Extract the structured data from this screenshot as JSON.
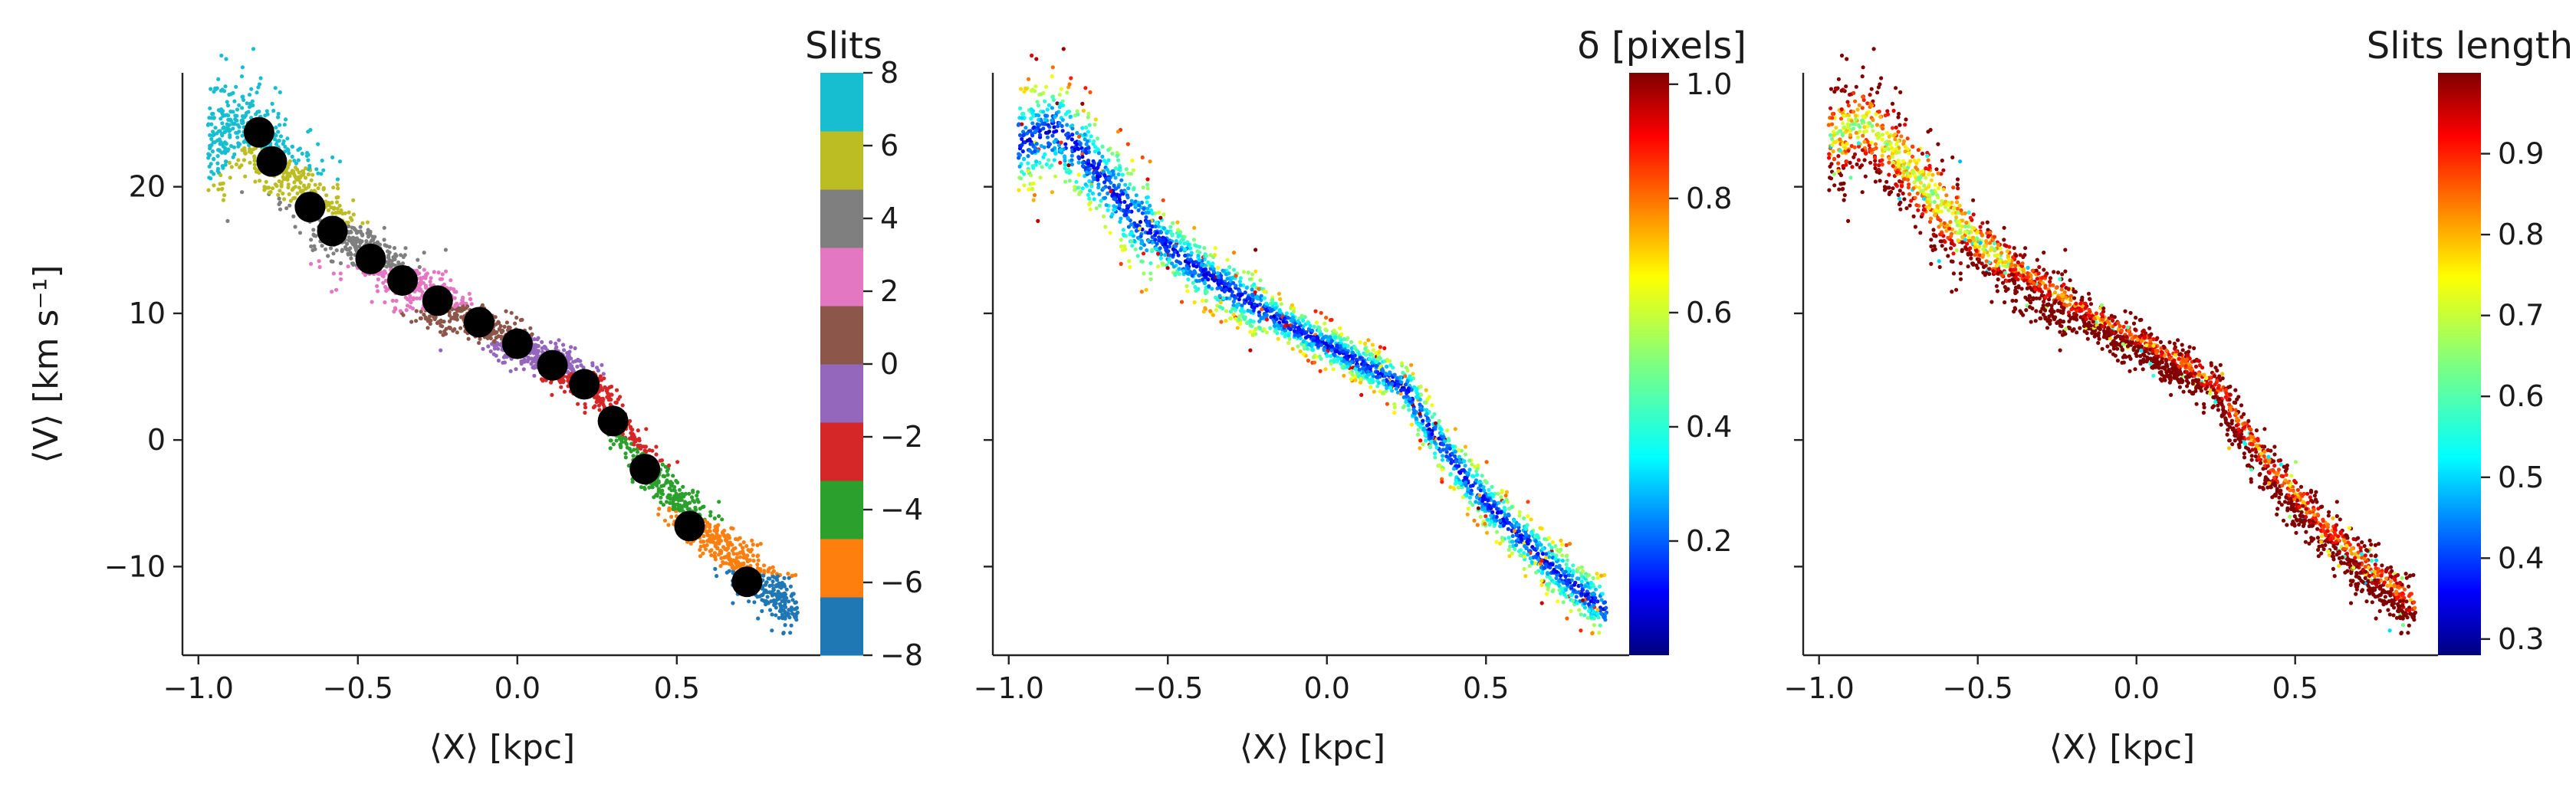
{
  "chart_data": [
    {
      "type": "scatter",
      "panel": "left",
      "xlabel": "⟨X⟩ [kpc]",
      "ylabel": "⟨V⟩ [km s⁻¹]",
      "xlim": [
        -1.05,
        0.95
      ],
      "ylim": [
        -17,
        29
      ],
      "xticks": [
        -1.0,
        -0.5,
        0.0,
        0.5
      ],
      "xtick_labels": [
        "−1.0",
        "−0.5",
        "0.0",
        "0.5"
      ],
      "yticks": [
        -10,
        0,
        10,
        20
      ],
      "ytick_labels": [
        "−10",
        "0",
        "10",
        "20"
      ],
      "colorbar": {
        "title": "Slits",
        "type": "discrete",
        "range": [
          -8,
          8
        ],
        "ticks": [
          -8,
          -6,
          -4,
          -2,
          0,
          2,
          4,
          6,
          8
        ],
        "tick_labels": [
          "−8",
          "−6",
          "−4",
          "−2",
          "0",
          "2",
          "4",
          "6",
          "8"
        ],
        "colors": [
          "#1f77b4",
          "#ff7f0e",
          "#2ca02c",
          "#d62728",
          "#9467bd",
          "#8c564b",
          "#e377c2",
          "#7f7f7f",
          "#bcbd22",
          "#17becf"
        ]
      },
      "markers": {
        "color": "#000000",
        "x": [
          -0.81,
          -0.77,
          -0.65,
          -0.58,
          -0.46,
          -0.36,
          -0.25,
          -0.12,
          0.0,
          0.11,
          0.21,
          0.3,
          0.4,
          0.54,
          0.72
        ],
        "y": [
          24.3,
          22.0,
          18.4,
          16.5,
          14.3,
          12.6,
          11.0,
          9.3,
          7.6,
          5.9,
          4.4,
          1.5,
          -2.3,
          -6.8,
          -11.2
        ]
      },
      "points_note": "scattered points colored by slit index along the trend"
    },
    {
      "type": "scatter",
      "panel": "middle",
      "xlabel": "⟨X⟩ [kpc]",
      "xlim": [
        -1.05,
        0.95
      ],
      "ylim": [
        -17,
        29
      ],
      "xticks": [
        -1.0,
        -0.5,
        0.0,
        0.5
      ],
      "xtick_labels": [
        "−1.0",
        "−0.5",
        "0.0",
        "0.5"
      ],
      "yticks": [
        -10,
        0,
        10,
        20
      ],
      "colorbar": {
        "title": "δ [pixels]",
        "type": "continuous",
        "colormap": "jet",
        "range": [
          0.0,
          1.02
        ],
        "ticks": [
          0.2,
          0.4,
          0.6,
          0.8,
          1.0
        ],
        "tick_labels": [
          "0.2",
          "0.4",
          "0.6",
          "0.8",
          "1.0"
        ]
      }
    },
    {
      "type": "scatter",
      "panel": "right",
      "xlabel": "⟨X⟩ [kpc]",
      "xlim": [
        -1.05,
        0.95
      ],
      "ylim": [
        -17,
        29
      ],
      "xticks": [
        -1.0,
        -0.5,
        0.0,
        0.5
      ],
      "xtick_labels": [
        "−1.0",
        "−0.5",
        "0.0",
        "0.5"
      ],
      "yticks": [
        -10,
        0,
        10,
        20
      ],
      "colorbar": {
        "title": "Slits length",
        "type": "continuous",
        "colormap": "jet",
        "range": [
          0.28,
          1.0
        ],
        "ticks": [
          0.3,
          0.4,
          0.5,
          0.6,
          0.7,
          0.8,
          0.9
        ],
        "tick_labels": [
          "0.3",
          "0.4",
          "0.5",
          "0.6",
          "0.7",
          "0.8",
          "0.9"
        ]
      }
    }
  ]
}
